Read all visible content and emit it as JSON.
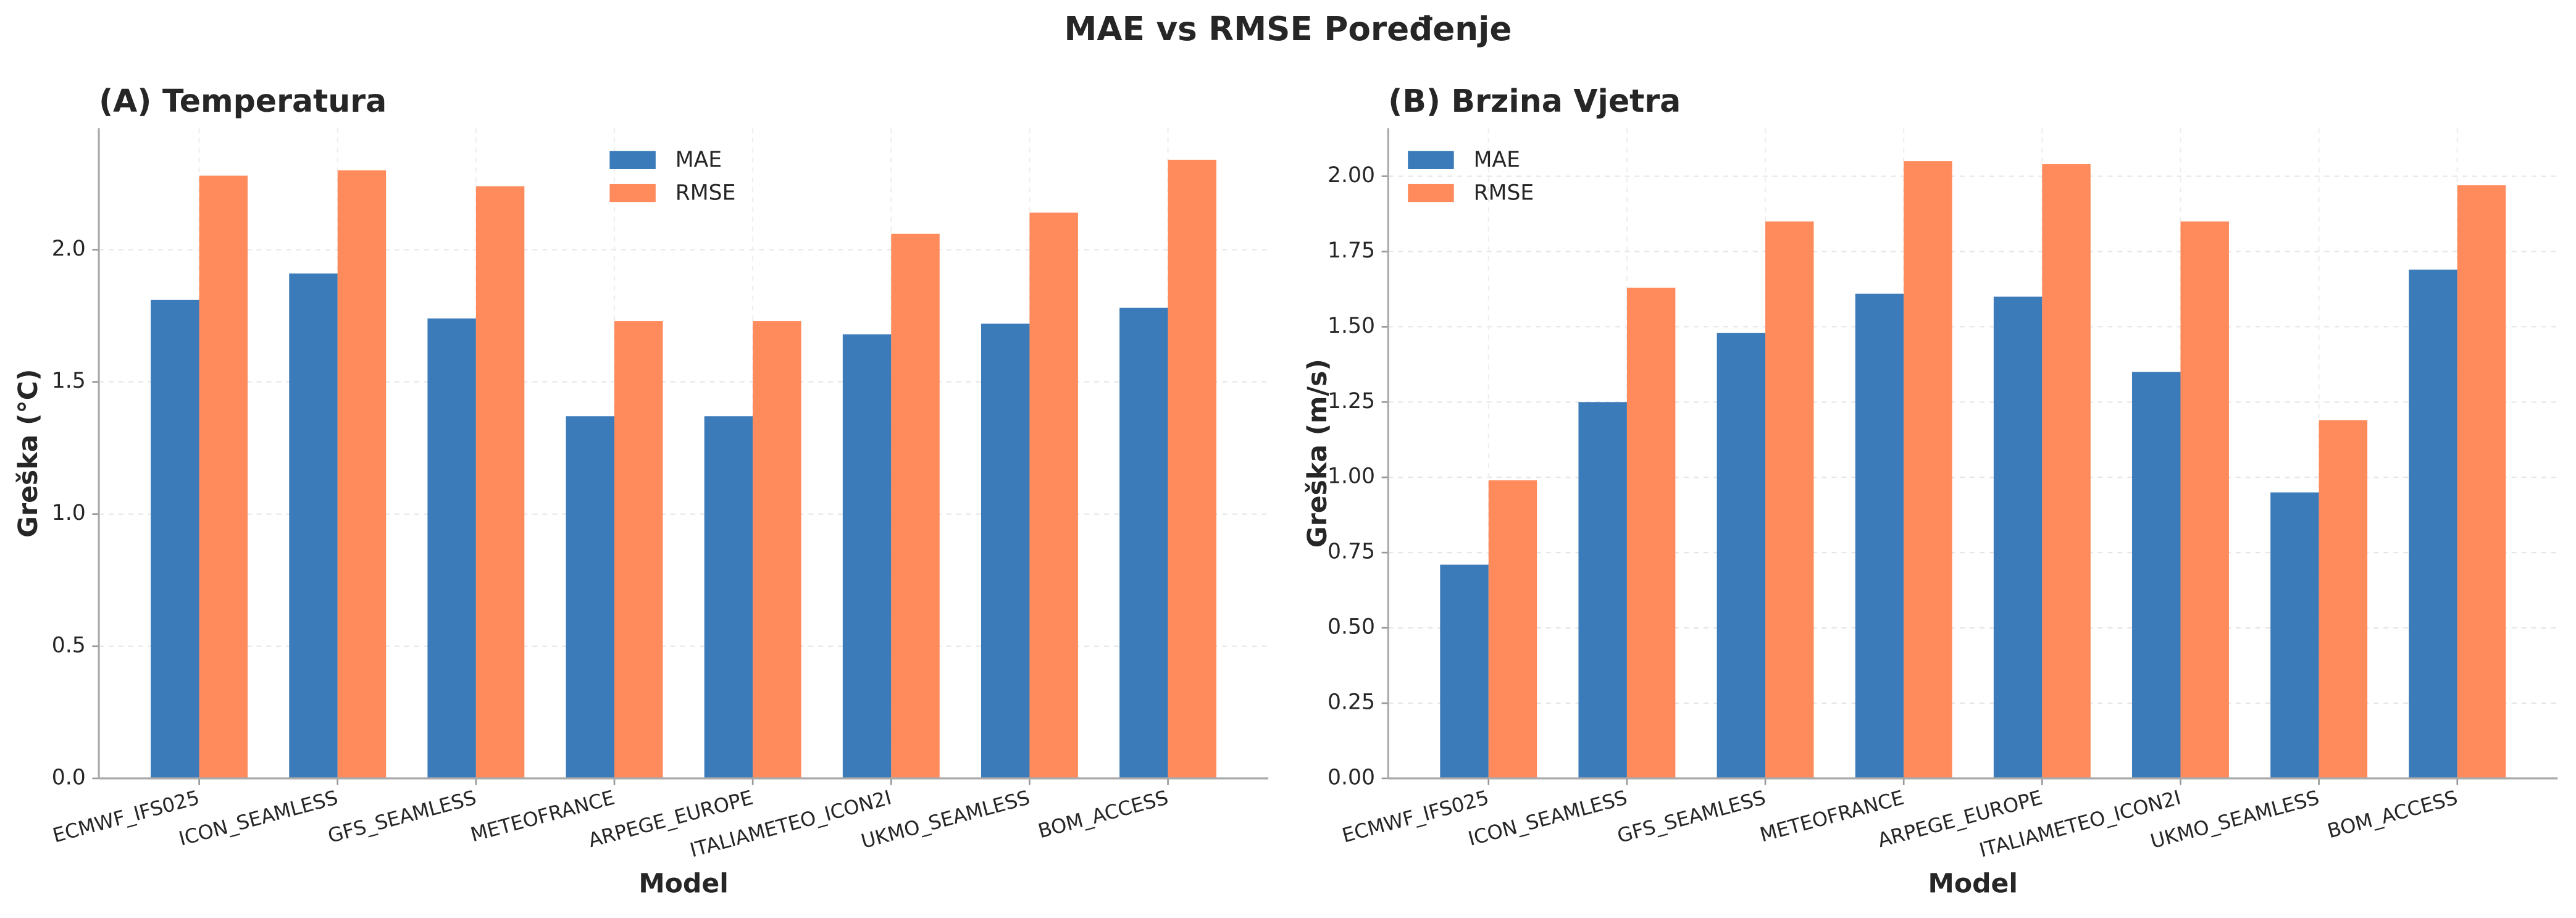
{
  "title": "MAE vs RMSE Poređenje",
  "chart_data": [
    {
      "type": "bar",
      "title": "(A) Temperatura",
      "xlabel": "Model",
      "ylabel": "Greška (°C)",
      "categories": [
        "ECMWF_IFS025",
        "ICON_SEAMLESS",
        "GFS_SEAMLESS",
        "METEOFRANCE",
        "ARPEGE_EUROPE",
        "ITALIAMETEO_ICON2I",
        "UKMO_SEAMLESS",
        "BOM_ACCESS"
      ],
      "series": [
        {
          "name": "MAE",
          "color": "#3b7bb9",
          "values": [
            1.81,
            1.91,
            1.74,
            1.37,
            1.37,
            1.68,
            1.72,
            1.78
          ]
        },
        {
          "name": "RMSE",
          "color": "#ff8a5b",
          "values": [
            2.28,
            2.3,
            2.24,
            1.73,
            1.73,
            2.06,
            2.14,
            2.34
          ]
        }
      ],
      "ylim": [
        0,
        2.46
      ],
      "yticks": [
        {
          "value": 0,
          "label": "0.0"
        },
        0.5,
        {
          "value": 1,
          "label": "1.0"
        },
        1.5,
        {
          "value": 2,
          "label": "2.0"
        }
      ],
      "grid": true,
      "legend": "upper center"
    },
    {
      "type": "bar",
      "title": "(B) Brzina Vjetra",
      "xlabel": "Model",
      "ylabel": "Greška (m/s)",
      "categories": [
        "ECMWF_IFS025",
        "ICON_SEAMLESS",
        "GFS_SEAMLESS",
        "METEOFRANCE",
        "ARPEGE_EUROPE",
        "ITALIAMETEO_ICON2I",
        "UKMO_SEAMLESS",
        "BOM_ACCESS"
      ],
      "series": [
        {
          "name": "MAE",
          "color": "#3b7bb9",
          "values": [
            0.71,
            1.25,
            1.48,
            1.61,
            1.6,
            1.35,
            0.95,
            1.69
          ]
        },
        {
          "name": "RMSE",
          "color": "#ff8a5b",
          "values": [
            0.99,
            1.63,
            1.85,
            2.05,
            2.04,
            1.85,
            1.19,
            1.97
          ]
        }
      ],
      "ylim": [
        0,
        2.16
      ],
      "yticks": [
        {
          "value": 0,
          "label": "0.00"
        },
        {
          "value": 0.25,
          "label": "0.25"
        },
        {
          "value": 0.5,
          "label": "0.50"
        },
        {
          "value": 0.75,
          "label": "0.75"
        },
        {
          "value": 1,
          "label": "1.00"
        },
        {
          "value": 1.25,
          "label": "1.25"
        },
        {
          "value": 1.5,
          "label": "1.50"
        },
        {
          "value": 1.75,
          "label": "1.75"
        },
        {
          "value": 2,
          "label": "2.00"
        }
      ],
      "grid": true,
      "legend": "upper left"
    }
  ]
}
